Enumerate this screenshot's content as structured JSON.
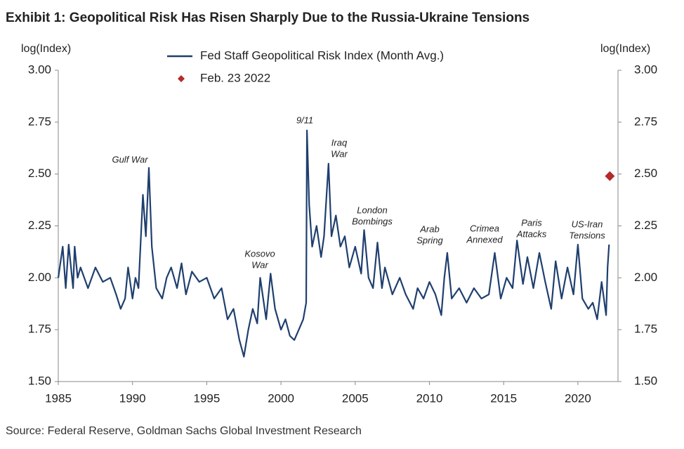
{
  "chart_data": {
    "type": "line",
    "title": "Exhibit 1: Geopolitical Risk Has Risen Sharply Due to the Russia-Ukraine Tensions",
    "ylabel": "log(Index)",
    "y2label": "log(Index)",
    "source": "Source: Federal Reserve, Goldman Sachs Global Investment Research",
    "xlim": [
      1985,
      2022.7
    ],
    "xticks": [
      1985,
      1990,
      1995,
      2000,
      2005,
      2010,
      2015,
      2020
    ],
    "ylim": [
      1.5,
      3.0
    ],
    "yticks": [
      {
        "value": 1.5,
        "label": "1.50"
      },
      {
        "value": 1.75,
        "label": "1.75"
      },
      {
        "value": 2.0,
        "label": "2.00"
      },
      {
        "value": 2.25,
        "label": "2.25"
      },
      {
        "value": 2.5,
        "label": "2.50"
      },
      {
        "value": 2.75,
        "label": "2.75"
      },
      {
        "value": 3.0,
        "label": "3.00"
      }
    ],
    "y2lim": [
      1.5,
      3.0
    ],
    "y2ticks": [
      {
        "value": 1.5,
        "label": "1.50"
      },
      {
        "value": 1.75,
        "label": "1.75"
      },
      {
        "value": 2.0,
        "label": "2.00"
      },
      {
        "value": 2.25,
        "label": "2.25"
      },
      {
        "value": 2.5,
        "label": "2.50"
      },
      {
        "value": 2.75,
        "label": "2.75"
      },
      {
        "value": 3.0,
        "label": "3.00"
      }
    ],
    "grid": false,
    "series": [
      {
        "name": "Fed Staff Geopolitical Risk Index (Month Avg.)",
        "color": "#1f3f6e",
        "marker": "line",
        "x": [
          1985,
          1985.3,
          1985.5,
          1985.7,
          1986,
          1986.1,
          1986.3,
          1986.5,
          1987,
          1987.5,
          1988,
          1988.5,
          1988.9,
          1989.2,
          1989.5,
          1989.7,
          1990,
          1990.2,
          1990.4,
          1990.7,
          1990.9,
          1991.1,
          1991.3,
          1991.6,
          1992,
          1992.3,
          1992.6,
          1993,
          1993.3,
          1993.6,
          1994,
          1994.5,
          1995,
          1995.5,
          1996,
          1996.4,
          1996.8,
          1997.2,
          1997.5,
          1997.8,
          1998.1,
          1998.4,
          1998.6,
          1999,
          1999.3,
          1999.6,
          2000,
          2000.3,
          2000.6,
          2000.9,
          2001.2,
          2001.5,
          2001.7,
          2001.75,
          2001.9,
          2002.1,
          2002.4,
          2002.7,
          2002.9,
          2003.2,
          2003.4,
          2003.7,
          2004,
          2004.3,
          2004.6,
          2005,
          2005.4,
          2005.6,
          2005.9,
          2006.2,
          2006.5,
          2006.8,
          2007,
          2007.5,
          2008,
          2008.4,
          2008.9,
          2009.2,
          2009.6,
          2010,
          2010.4,
          2010.8,
          2011,
          2011.2,
          2011.5,
          2012,
          2012.5,
          2013,
          2013.5,
          2014,
          2014.4,
          2014.8,
          2015.2,
          2015.6,
          2015.9,
          2016.3,
          2016.6,
          2017,
          2017.4,
          2017.8,
          2018.2,
          2018.5,
          2018.9,
          2019.3,
          2019.7,
          2020,
          2020.3,
          2020.7,
          2021,
          2021.3,
          2021.6,
          2021.9,
          2022,
          2022.1
        ],
        "values": [
          2.0,
          2.15,
          1.95,
          2.16,
          1.95,
          2.15,
          2.0,
          2.05,
          1.95,
          2.05,
          1.98,
          2.0,
          1.92,
          1.85,
          1.9,
          2.05,
          1.9,
          2.0,
          1.95,
          2.4,
          2.2,
          2.53,
          2.15,
          1.95,
          1.9,
          2.0,
          2.05,
          1.95,
          2.07,
          1.92,
          2.03,
          1.98,
          2.0,
          1.9,
          1.95,
          1.8,
          1.85,
          1.7,
          1.62,
          1.75,
          1.85,
          1.78,
          2.0,
          1.8,
          2.02,
          1.85,
          1.75,
          1.8,
          1.72,
          1.7,
          1.75,
          1.8,
          1.88,
          2.71,
          2.35,
          2.15,
          2.25,
          2.1,
          2.2,
          2.55,
          2.2,
          2.3,
          2.15,
          2.2,
          2.05,
          2.15,
          2.02,
          2.23,
          2.0,
          1.95,
          2.17,
          1.95,
          2.05,
          1.92,
          2.0,
          1.92,
          1.85,
          1.95,
          1.9,
          1.98,
          1.92,
          1.82,
          2.0,
          2.12,
          1.9,
          1.95,
          1.88,
          1.95,
          1.9,
          1.92,
          2.12,
          1.9,
          2.0,
          1.95,
          2.18,
          1.97,
          2.1,
          1.95,
          2.12,
          1.98,
          1.85,
          2.08,
          1.9,
          2.05,
          1.92,
          2.16,
          1.9,
          1.85,
          1.88,
          1.8,
          1.98,
          1.82,
          2.05,
          2.16
        ]
      },
      {
        "name": "Feb. 23 2022",
        "color": "#b52a2a",
        "marker": "diamond",
        "axis": "y2",
        "x": [
          2022.15
        ],
        "values": [
          2.49
        ]
      }
    ],
    "annotations": [
      [
        "Gulf War"
      ],
      [
        "Kosovo",
        "War"
      ],
      [
        "9/11"
      ],
      [
        "Iraq",
        "War"
      ],
      [
        "London",
        "Bombings"
      ],
      [
        "Arab",
        "Spring"
      ],
      [
        "Crimea",
        "Annexed"
      ],
      [
        "Paris",
        "Attacks"
      ],
      [
        "US-Iran",
        "Tensions"
      ]
    ]
  }
}
